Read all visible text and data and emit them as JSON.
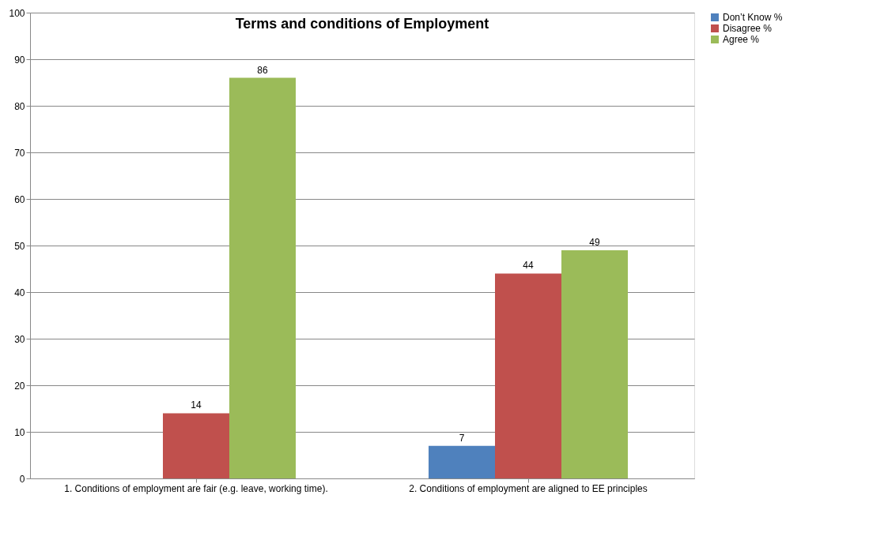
{
  "chart_data": {
    "type": "bar",
    "title": "Terms and conditions of Employment",
    "categories": [
      "1. Conditions of employment are fair (e.g. leave,  working time).",
      "2. Conditions of employment are aligned to EE principles"
    ],
    "series": [
      {
        "name": "Don’t Know %",
        "color": "#4f81bd",
        "values": [
          null,
          7
        ]
      },
      {
        "name": "Disagree %",
        "color": "#c0504d",
        "values": [
          14,
          44
        ]
      },
      {
        "name": "Agree %",
        "color": "#9bbb59",
        "values": [
          86,
          49
        ]
      }
    ],
    "ylim": [
      0,
      100
    ],
    "yticks": [
      0,
      10,
      20,
      30,
      40,
      50,
      60,
      70,
      80,
      90,
      100
    ],
    "grid": "y",
    "legend": "right",
    "data_labels": true
  }
}
